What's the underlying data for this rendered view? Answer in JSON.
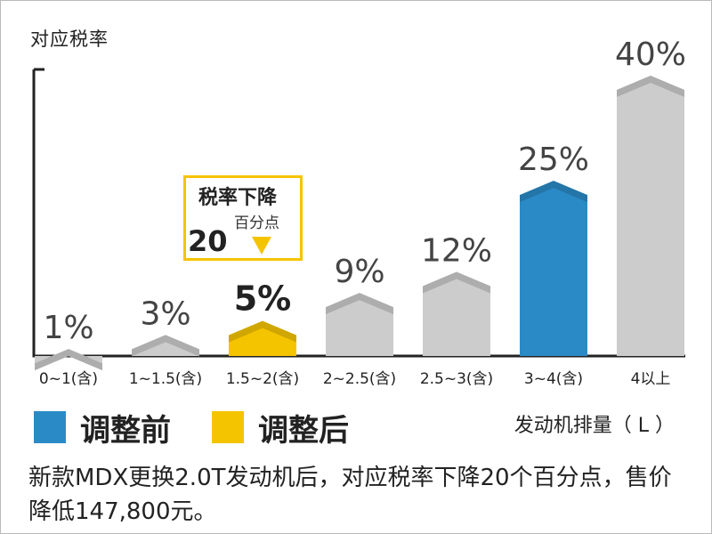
{
  "chart_data": {
    "type": "bar",
    "ylabel": "对应税率",
    "xlabel": "发动机排量（ L ）",
    "categories": [
      "0~1(含)",
      "1~1.5(含)",
      "1.5~2(含)",
      "2~2.5(含)",
      "2.5~3(含)",
      "3~4(含)",
      "4以上"
    ],
    "values": [
      1,
      3,
      5,
      9,
      12,
      25,
      40
    ],
    "value_labels": [
      "1%",
      "3%",
      "5%",
      "9%",
      "12%",
      "25%",
      "40%"
    ],
    "bar_colors": [
      "#cccccc",
      "#cccccc",
      "#f5c400",
      "#cccccc",
      "#cccccc",
      "#2a8ac6",
      "#cccccc"
    ],
    "ylim": [
      0,
      40
    ]
  },
  "legend": [
    {
      "label": "调整前",
      "color": "#2a8ac6"
    },
    {
      "label": "调整后",
      "color": "#f5c400"
    }
  ],
  "callout": {
    "title": "税率下降",
    "subtitle": "百分点",
    "value": "20"
  },
  "caption": "新款MDX更换2.0T发动机后，对应税率下降20个百分点，售价降低147,800元。"
}
